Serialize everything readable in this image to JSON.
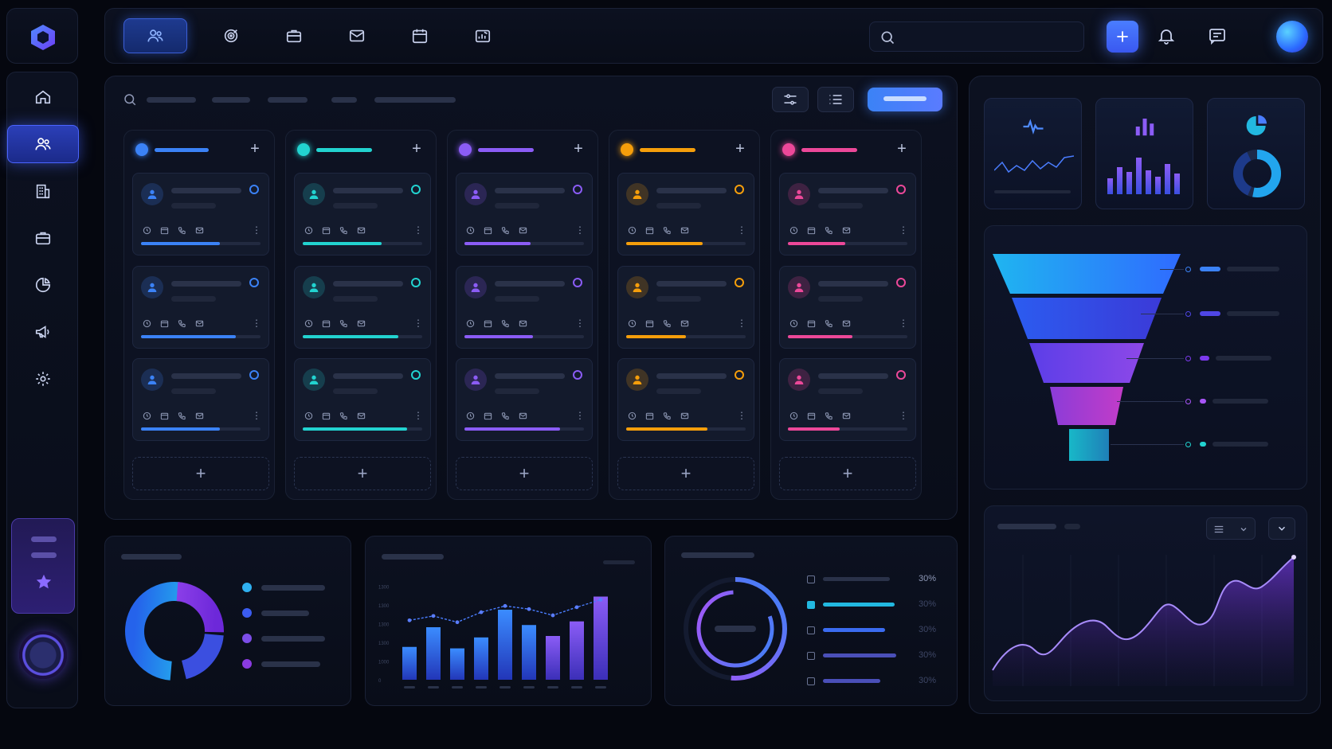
{
  "theme": {
    "bg": "#05070f",
    "accent": "#3b6cff",
    "blue": "#2f6bff",
    "cyan": "#22d3d0",
    "purple": "#8b5cf6",
    "orange": "#f59e0b",
    "pink": "#ec4899"
  },
  "sidebar": {
    "logo": "hexagon-logo-icon",
    "items": [
      {
        "icon": "home-icon",
        "active": false
      },
      {
        "icon": "users-icon",
        "active": true
      },
      {
        "icon": "building-icon",
        "active": false
      },
      {
        "icon": "briefcase-icon",
        "active": false
      },
      {
        "icon": "pie-chart-icon",
        "active": false
      },
      {
        "icon": "megaphone-icon",
        "active": false
      },
      {
        "icon": "gear-icon",
        "active": false
      }
    ],
    "promo_icon": "star-icon"
  },
  "topbar": {
    "tabs": [
      {
        "icon": "users-icon",
        "active": true
      },
      {
        "icon": "target-icon",
        "active": false
      },
      {
        "icon": "briefcase-icon",
        "active": false
      },
      {
        "icon": "mail-icon",
        "active": false
      },
      {
        "icon": "calendar-icon",
        "active": false
      },
      {
        "icon": "chart-icon",
        "active": false
      }
    ],
    "search_placeholder": "",
    "actions": [
      "add-icon",
      "bell-icon",
      "chat-icon",
      "avatar"
    ]
  },
  "board": {
    "columns": [
      {
        "color": "#3b82f6",
        "fills": [
          0.66,
          0.79,
          0.66
        ]
      },
      {
        "color": "#22d3d0",
        "fills": [
          0.66,
          0.8,
          0.87
        ]
      },
      {
        "color": "#8b5cf6",
        "fills": [
          0.55,
          0.57,
          0.8
        ]
      },
      {
        "color": "#f59e0b",
        "fills": [
          0.64,
          0.5,
          0.68
        ]
      },
      {
        "color": "#ec4899",
        "fills": [
          0.48,
          0.54,
          0.43
        ]
      }
    ]
  },
  "bar_chart": {
    "y_ticks": [
      "0",
      "1000",
      "1300",
      "1300",
      "1300",
      "1300"
    ],
    "values": [
      45,
      72,
      43,
      58,
      96,
      75,
      60,
      80,
      114
    ]
  },
  "radial_list": {
    "percents": [
      "30%",
      "30%",
      "30%",
      "30%",
      "30%"
    ]
  }
}
